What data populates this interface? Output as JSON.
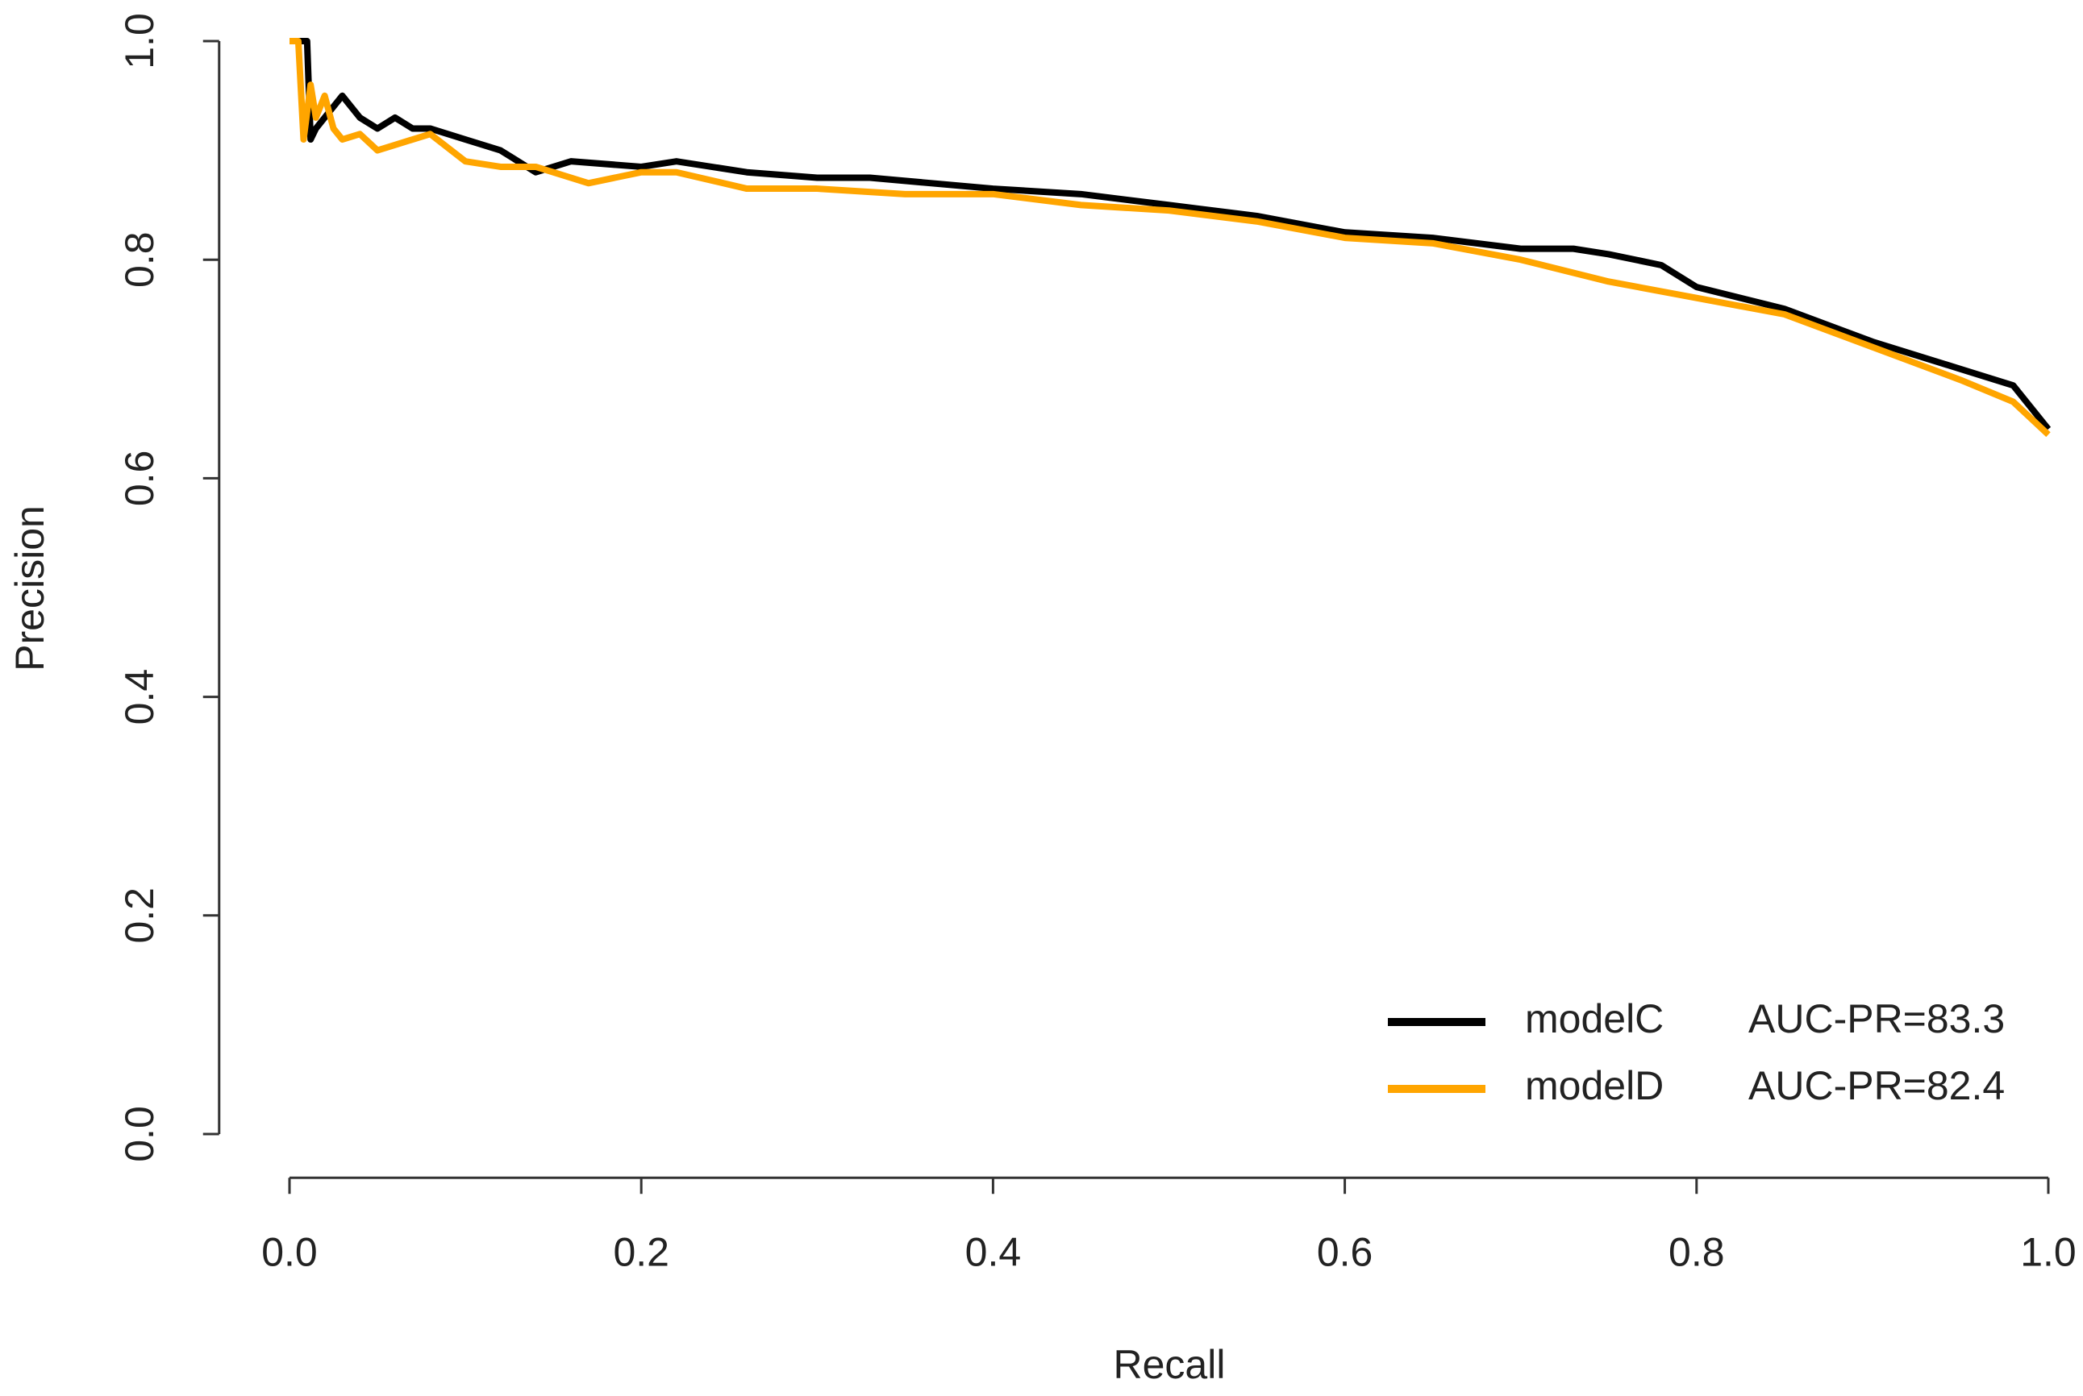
{
  "chart_data": {
    "type": "line",
    "xlabel": "Recall",
    "ylabel": "Precision",
    "xlim": [
      -0.04,
      1.04
    ],
    "ylim": [
      -0.04,
      1.04
    ],
    "xticks": [
      {
        "value": 0,
        "label": "0.0"
      },
      0.2,
      0.4,
      0.6,
      0.8,
      {
        "value": 1,
        "label": "1.0"
      }
    ],
    "yticks": [
      {
        "value": 0,
        "label": "0.0"
      },
      0.2,
      0.4,
      0.6,
      0.8,
      {
        "value": 1,
        "label": "1.0"
      }
    ],
    "grid": false,
    "legend": "bottom-right",
    "series": [
      {
        "name": "modelC",
        "color": "#000000",
        "auc_label": "AUC-PR=83.3",
        "x": [
          0,
          0.005,
          0.01,
          0.012,
          0.015,
          0.02,
          0.03,
          0.04,
          0.05,
          0.06,
          0.07,
          0.08,
          0.1,
          0.12,
          0.14,
          0.16,
          0.2,
          0.22,
          0.26,
          0.3,
          0.33,
          0.4,
          0.45,
          0.5,
          0.55,
          0.6,
          0.65,
          0.7,
          0.73,
          0.75,
          0.78,
          0.8,
          0.85,
          0.9,
          0.95,
          0.98,
          1.0
        ],
        "values": [
          1.0,
          1.0,
          1.0,
          0.91,
          0.92,
          0.93,
          0.95,
          0.93,
          0.92,
          0.93,
          0.92,
          0.92,
          0.91,
          0.9,
          0.88,
          0.89,
          0.885,
          0.89,
          0.88,
          0.875,
          0.875,
          0.865,
          0.86,
          0.85,
          0.84,
          0.825,
          0.82,
          0.81,
          0.81,
          0.805,
          0.795,
          0.775,
          0.755,
          0.725,
          0.7,
          0.685,
          0.645
        ]
      },
      {
        "name": "modelD",
        "color": "#ffa500",
        "auc_label": "AUC-PR=82.4",
        "x": [
          0,
          0.005,
          0.008,
          0.012,
          0.015,
          0.02,
          0.025,
          0.03,
          0.04,
          0.05,
          0.06,
          0.08,
          0.1,
          0.12,
          0.14,
          0.17,
          0.2,
          0.22,
          0.26,
          0.3,
          0.35,
          0.4,
          0.45,
          0.5,
          0.55,
          0.6,
          0.65,
          0.7,
          0.75,
          0.8,
          0.85,
          0.9,
          0.95,
          0.98,
          1.0
        ],
        "values": [
          1.0,
          1.0,
          0.91,
          0.96,
          0.93,
          0.95,
          0.92,
          0.91,
          0.915,
          0.9,
          0.905,
          0.915,
          0.89,
          0.885,
          0.885,
          0.87,
          0.88,
          0.88,
          0.865,
          0.865,
          0.86,
          0.86,
          0.85,
          0.845,
          0.835,
          0.82,
          0.815,
          0.8,
          0.78,
          0.765,
          0.75,
          0.72,
          0.69,
          0.67,
          0.64
        ]
      }
    ]
  }
}
